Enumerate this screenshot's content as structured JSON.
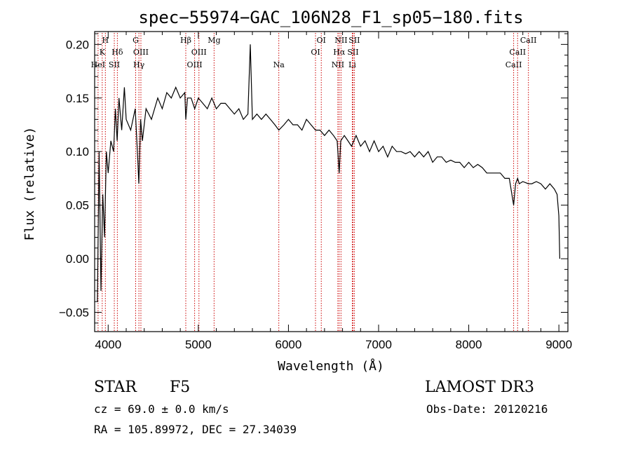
{
  "chart_data": {
    "type": "line",
    "title": "spec−55974−GAC_106N28_F1_sp05−180.fits",
    "xlabel": "Wavelength (Å)",
    "ylabel": "Flux (relative)",
    "xlim": [
      3850,
      9100
    ],
    "ylim": [
      -0.068,
      0.212
    ],
    "xticks": [
      4000,
      5000,
      6000,
      7000,
      8000,
      9000
    ],
    "xtick_labels": [
      "4000",
      "5000",
      "6000",
      "7000",
      "8000",
      "9000"
    ],
    "yticks": [
      -0.05,
      0.0,
      0.05,
      0.1,
      0.15,
      0.2
    ],
    "ytick_labels": [
      "−0.05",
      "0.00",
      "0.05",
      "0.10",
      "0.15",
      "0.20"
    ],
    "series": [
      {
        "name": "flux",
        "x": [
          3880,
          3900,
          3920,
          3940,
          3960,
          3980,
          4000,
          4030,
          4060,
          4080,
          4100,
          4120,
          4150,
          4180,
          4200,
          4250,
          4300,
          4330,
          4340,
          4360,
          4380,
          4420,
          4480,
          4550,
          4600,
          4650,
          4700,
          4750,
          4800,
          4850,
          4861,
          4880,
          4920,
          4960,
          5000,
          5050,
          5100,
          5150,
          5200,
          5250,
          5300,
          5350,
          5400,
          5450,
          5500,
          5550,
          5577,
          5600,
          5650,
          5700,
          5750,
          5800,
          5850,
          5893,
          5950,
          6000,
          6050,
          6100,
          6150,
          6200,
          6250,
          6300,
          6350,
          6400,
          6450,
          6500,
          6540,
          6563,
          6580,
          6620,
          6660,
          6700,
          6750,
          6800,
          6850,
          6900,
          6950,
          7000,
          7050,
          7100,
          7150,
          7200,
          7250,
          7300,
          7350,
          7400,
          7450,
          7500,
          7550,
          7600,
          7650,
          7700,
          7750,
          7800,
          7850,
          7900,
          7950,
          8000,
          8050,
          8100,
          8150,
          8200,
          8250,
          8300,
          8350,
          8400,
          8450,
          8498,
          8520,
          8542,
          8560,
          8600,
          8662,
          8700,
          8750,
          8800,
          8850,
          8900,
          8950,
          8980,
          9000,
          9010
        ],
        "values": [
          -0.04,
          0.1,
          -0.03,
          0.06,
          0.02,
          0.1,
          0.08,
          0.11,
          0.1,
          0.14,
          0.11,
          0.15,
          0.12,
          0.16,
          0.13,
          0.12,
          0.14,
          0.09,
          0.07,
          0.13,
          0.11,
          0.14,
          0.13,
          0.15,
          0.14,
          0.155,
          0.15,
          0.16,
          0.15,
          0.155,
          0.13,
          0.15,
          0.15,
          0.14,
          0.15,
          0.145,
          0.14,
          0.15,
          0.14,
          0.145,
          0.145,
          0.14,
          0.135,
          0.14,
          0.13,
          0.135,
          0.2,
          0.13,
          0.135,
          0.13,
          0.135,
          0.13,
          0.125,
          0.12,
          0.125,
          0.13,
          0.125,
          0.125,
          0.12,
          0.13,
          0.125,
          0.12,
          0.12,
          0.115,
          0.12,
          0.115,
          0.11,
          0.08,
          0.11,
          0.115,
          0.11,
          0.105,
          0.115,
          0.105,
          0.11,
          0.1,
          0.11,
          0.1,
          0.105,
          0.095,
          0.105,
          0.1,
          0.1,
          0.098,
          0.1,
          0.095,
          0.1,
          0.095,
          0.1,
          0.09,
          0.095,
          0.095,
          0.09,
          0.092,
          0.09,
          0.09,
          0.085,
          0.09,
          0.085,
          0.088,
          0.085,
          0.08,
          0.08,
          0.08,
          0.08,
          0.075,
          0.075,
          0.05,
          0.07,
          0.075,
          0.07,
          0.072,
          0.07,
          0.07,
          0.072,
          0.07,
          0.065,
          0.07,
          0.065,
          0.06,
          0.04,
          0.0
        ]
      }
    ],
    "line_markers": [
      {
        "label": "HeI",
        "wavelength": 3888,
        "row": 3
      },
      {
        "label": "K",
        "wavelength": 3934,
        "row": 2
      },
      {
        "label": "H",
        "wavelength": 3969,
        "row": 1
      },
      {
        "label": "SII",
        "wavelength": 4068,
        "row": 3
      },
      {
        "label": "Hδ",
        "wavelength": 4102,
        "row": 2
      },
      {
        "label": "G",
        "wavelength": 4305,
        "row": 1
      },
      {
        "label": "Hγ",
        "wavelength": 4341,
        "row": 3
      },
      {
        "label": "OIII",
        "wavelength": 4363,
        "row": 2
      },
      {
        "label": "Hβ",
        "wavelength": 4861,
        "row": 1
      },
      {
        "label": "OIII",
        "wavelength": 4959,
        "row": 3
      },
      {
        "label": "OIII",
        "wavelength": 5007,
        "row": 2
      },
      {
        "label": "Mg",
        "wavelength": 5175,
        "row": 1
      },
      {
        "label": "Na",
        "wavelength": 5893,
        "row": 3
      },
      {
        "label": "OI",
        "wavelength": 6300,
        "row": 2
      },
      {
        "label": "OI",
        "wavelength": 6364,
        "row": 1
      },
      {
        "label": "NII",
        "wavelength": 6548,
        "row": 3
      },
      {
        "label": "Hα",
        "wavelength": 6563,
        "row": 2
      },
      {
        "label": "NII",
        "wavelength": 6583,
        "row": 1
      },
      {
        "label": "Li",
        "wavelength": 6708,
        "row": 3
      },
      {
        "label": "SII",
        "wavelength": 6716,
        "row": 2
      },
      {
        "label": "SII",
        "wavelength": 6731,
        "row": 1
      },
      {
        "label": "CaII",
        "wavelength": 8498,
        "row": 3
      },
      {
        "label": "CaII",
        "wavelength": 8542,
        "row": 2
      },
      {
        "label": "CaII",
        "wavelength": 8662,
        "row": 1
      }
    ],
    "marker_color": "#cc0000",
    "line_color": "#000000"
  },
  "info": {
    "object_class": "STAR",
    "subclass": "F5",
    "survey": "LAMOST DR3",
    "redshift": "cz = 69.0 ± 0.0 km/s",
    "obs_date": "Obs-Date: 20120216",
    "coords": "RA = 105.89972, DEC =  27.34039"
  }
}
